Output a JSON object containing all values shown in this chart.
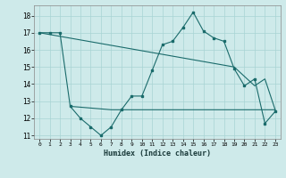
{
  "xlabel": "Humidex (Indice chaleur)",
  "xlim": [
    -0.5,
    23.5
  ],
  "ylim": [
    10.8,
    18.6
  ],
  "yticks": [
    11,
    12,
    13,
    14,
    15,
    16,
    17,
    18
  ],
  "xticks": [
    0,
    1,
    2,
    3,
    4,
    5,
    6,
    7,
    8,
    9,
    10,
    11,
    12,
    13,
    14,
    15,
    16,
    17,
    18,
    19,
    20,
    21,
    22,
    23
  ],
  "background_color": "#ceeaea",
  "grid_color": "#a8d4d4",
  "line_color": "#1a6b6b",
  "line1_x": [
    0,
    1,
    2,
    3,
    4,
    5,
    6,
    7,
    8,
    9,
    10,
    11,
    12,
    13,
    14,
    15,
    16,
    17,
    18,
    19,
    20,
    21,
    22,
    23
  ],
  "line1_y": [
    17,
    17,
    17,
    12.7,
    12.0,
    11.5,
    11.0,
    11.5,
    12.5,
    13.3,
    13.3,
    14.8,
    16.3,
    16.5,
    17.3,
    18.2,
    17.1,
    16.7,
    16.5,
    14.9,
    13.9,
    14.3,
    11.7,
    12.4
  ],
  "line2_x": [
    3,
    7,
    10,
    21,
    23
  ],
  "line2_y": [
    12.7,
    12.5,
    12.5,
    12.5,
    12.5
  ],
  "line3_x": [
    0,
    19,
    21,
    22,
    23
  ],
  "line3_y": [
    17.0,
    15.0,
    13.9,
    14.3,
    12.5
  ]
}
